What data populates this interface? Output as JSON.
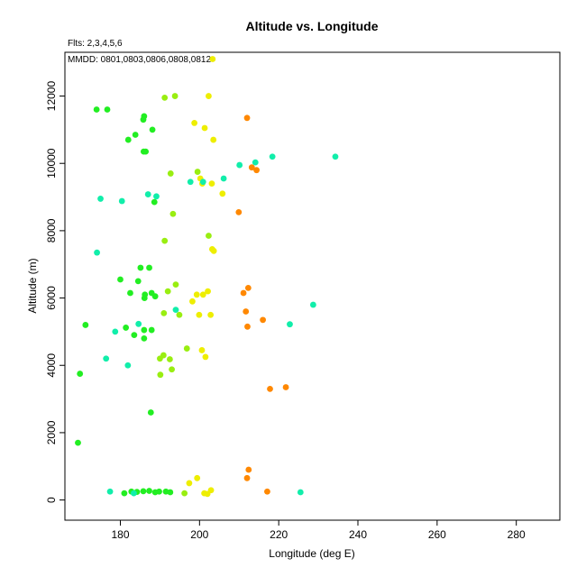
{
  "chart_data": {
    "type": "scatter",
    "title": "Altitude vs. Longitude",
    "subtitle_flights": "Flts: 2,3,4,5,6",
    "subtitle_dates": "MMDD: 0801,0803,0806,0808,0812",
    "xlabel": "Longitude (deg E)",
    "ylabel": "Altitude (m)",
    "xlim": [
      166,
      291
    ],
    "ylim": [
      -600,
      13300
    ],
    "xticks": [
      180,
      200,
      220,
      240,
      260,
      280
    ],
    "yticks": [
      0,
      2000,
      4000,
      6000,
      8000,
      10000,
      12000
    ],
    "grid": false,
    "legend": "none",
    "colors": {
      "green": "#22ee22",
      "lime": "#99ee11",
      "yellow": "#eeee00",
      "orange": "#ff8800",
      "cyan": "#11eeaa"
    },
    "series": [
      {
        "color_key": "green",
        "points": [
          [
            169.3,
            1700
          ],
          [
            169.8,
            3750
          ],
          [
            171.2,
            5200
          ],
          [
            174.0,
            11600
          ],
          [
            176.7,
            11600
          ],
          [
            180.0,
            6550
          ],
          [
            182.0,
            10700
          ],
          [
            182.5,
            6150
          ],
          [
            183.5,
            4900
          ],
          [
            183.8,
            10850
          ],
          [
            184.5,
            6500
          ],
          [
            185.1,
            6900
          ],
          [
            185.8,
            11300
          ],
          [
            186.0,
            11400
          ],
          [
            186.0,
            4800
          ],
          [
            186.2,
            6100
          ],
          [
            186.0,
            5050
          ],
          [
            185.9,
            10350
          ],
          [
            186.4,
            10350
          ],
          [
            186.1,
            6000
          ],
          [
            187.3,
            6900
          ],
          [
            187.7,
            2600
          ],
          [
            187.9,
            5050
          ],
          [
            188.1,
            11000
          ],
          [
            188.6,
            8850
          ],
          [
            188.8,
            6050
          ],
          [
            187.9,
            6150
          ],
          [
            181.4,
            5120
          ],
          [
            181.0,
            200
          ],
          [
            182.8,
            250
          ],
          [
            184.2,
            240
          ],
          [
            185.8,
            260
          ],
          [
            187.3,
            270
          ],
          [
            188.8,
            230
          ],
          [
            189.8,
            250
          ],
          [
            191.5,
            250
          ],
          [
            192.6,
            230
          ]
        ]
      },
      {
        "color_key": "lime",
        "points": [
          [
            190.0,
            4200
          ],
          [
            190.1,
            3720
          ],
          [
            190.9,
            4300
          ],
          [
            191.0,
            5550
          ],
          [
            191.2,
            7700
          ],
          [
            191.2,
            11950
          ],
          [
            192.0,
            6200
          ],
          [
            192.5,
            4180
          ],
          [
            192.7,
            9700
          ],
          [
            193.0,
            3880
          ],
          [
            193.3,
            8500
          ],
          [
            193.8,
            12000
          ],
          [
            194.0,
            6400
          ],
          [
            194.9,
            5500
          ],
          [
            196.8,
            4500
          ],
          [
            199.5,
            9750
          ],
          [
            202.3,
            7850
          ],
          [
            196.2,
            200
          ]
        ]
      },
      {
        "color_key": "yellow",
        "points": [
          [
            197.4,
            500
          ],
          [
            198.2,
            5900
          ],
          [
            198.7,
            11200
          ],
          [
            199.3,
            6100
          ],
          [
            199.4,
            650
          ],
          [
            199.9,
            5500
          ],
          [
            200.2,
            9550
          ],
          [
            200.6,
            4450
          ],
          [
            200.7,
            9400
          ],
          [
            200.9,
            6100
          ],
          [
            201.3,
            11050
          ],
          [
            201.5,
            4250
          ],
          [
            202.1,
            6200
          ],
          [
            202.3,
            12000
          ],
          [
            202.8,
            5500
          ],
          [
            203.1,
            9400
          ],
          [
            203.2,
            7450
          ],
          [
            203.5,
            10700
          ],
          [
            203.6,
            7400
          ],
          [
            203.3,
            13100
          ],
          [
            205.8,
            9100
          ],
          [
            201.2,
            200
          ],
          [
            202.0,
            180
          ],
          [
            202.9,
            290
          ]
        ]
      },
      {
        "color_key": "orange",
        "points": [
          [
            209.9,
            8550
          ],
          [
            211.1,
            6150
          ],
          [
            211.7,
            5600
          ],
          [
            212.0,
            11350
          ],
          [
            212.1,
            5150
          ],
          [
            212.3,
            6300
          ],
          [
            212.0,
            650
          ],
          [
            212.4,
            900
          ],
          [
            213.2,
            9880
          ],
          [
            214.4,
            9800
          ],
          [
            216.0,
            5350
          ],
          [
            217.1,
            250
          ],
          [
            217.8,
            3300
          ],
          [
            221.8,
            3350
          ]
        ]
      },
      {
        "color_key": "cyan",
        "points": [
          [
            175.0,
            8950
          ],
          [
            176.4,
            4200
          ],
          [
            177.4,
            250
          ],
          [
            178.7,
            5000
          ],
          [
            180.4,
            8880
          ],
          [
            181.9,
            4000
          ],
          [
            183.4,
            200
          ],
          [
            184.6,
            5230
          ],
          [
            187.0,
            9080
          ],
          [
            189.1,
            9020
          ],
          [
            194.0,
            5650
          ],
          [
            197.7,
            9450
          ],
          [
            200.9,
            9450
          ],
          [
            206.1,
            9550
          ],
          [
            210.1,
            9950
          ],
          [
            214.1,
            10030
          ],
          [
            218.4,
            10200
          ],
          [
            222.8,
            5220
          ],
          [
            225.5,
            230
          ],
          [
            228.7,
            5800
          ],
          [
            234.3,
            10200
          ],
          [
            174.1,
            7350
          ]
        ]
      }
    ]
  }
}
